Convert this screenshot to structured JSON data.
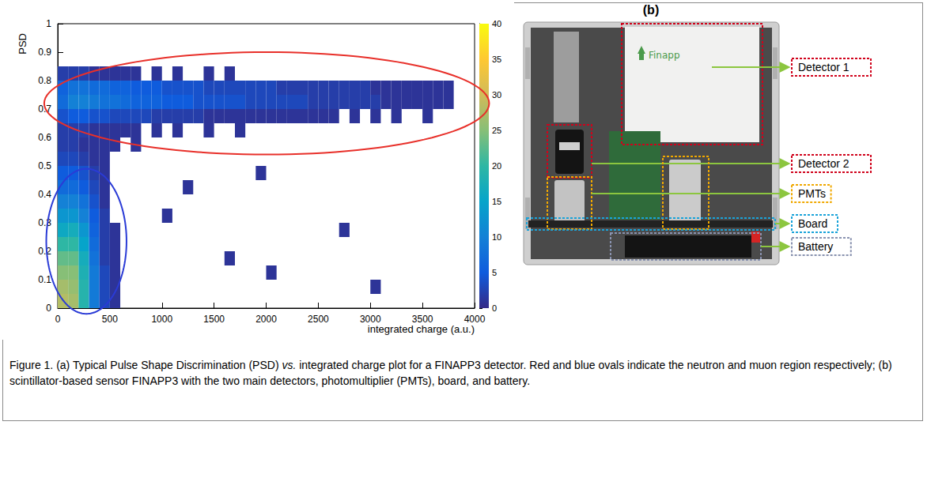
{
  "chart_data": {
    "type": "heatmap",
    "panel_label": "(a)",
    "x_label": "integrated charge (a.u.)",
    "y_label": "PSD",
    "x_bins": [
      0,
      100,
      200,
      300,
      400,
      500,
      600,
      700,
      800,
      900,
      1000,
      1100,
      1200,
      1300,
      1400,
      1500,
      1600,
      1700,
      1800,
      1900,
      2000,
      2100,
      2200,
      2300,
      2400,
      2500,
      2600,
      2700,
      2800,
      2900,
      3000,
      3100,
      3200,
      3300,
      3400,
      3500,
      3600,
      3700,
      3800,
      3900,
      4000
    ],
    "y_bins": [
      0,
      0.05,
      0.1,
      0.15,
      0.2,
      0.25,
      0.3,
      0.35,
      0.4,
      0.45,
      0.5,
      0.55,
      0.6,
      0.65,
      0.7,
      0.75,
      0.8,
      0.85,
      0.9,
      0.95,
      1
    ],
    "counts": [
      [
        28,
        27,
        19,
        9,
        3,
        1,
        0,
        0,
        0,
        0,
        0,
        0,
        0,
        0,
        0,
        0,
        0,
        0,
        0,
        0,
        0,
        0,
        0,
        0,
        0,
        0,
        0,
        0,
        0,
        0,
        0,
        0,
        0,
        0,
        0,
        0,
        0,
        0,
        0,
        0
      ],
      [
        27,
        26,
        19,
        9,
        3,
        1,
        0,
        0,
        0,
        0,
        0,
        0,
        0,
        0,
        0,
        0,
        0,
        0,
        0,
        0,
        0,
        0,
        0,
        0,
        0,
        0,
        0,
        0,
        0,
        0,
        1,
        0,
        0,
        0,
        0,
        0,
        0,
        0,
        0,
        0
      ],
      [
        25,
        25,
        18,
        9,
        3,
        1,
        0,
        0,
        0,
        0,
        0,
        0,
        0,
        0,
        0,
        0,
        0,
        0,
        0,
        0,
        1,
        0,
        0,
        0,
        0,
        0,
        0,
        0,
        0,
        0,
        0,
        0,
        0,
        0,
        0,
        0,
        0,
        0,
        0,
        0
      ],
      [
        23,
        23,
        17,
        8,
        2,
        1,
        0,
        0,
        0,
        0,
        0,
        0,
        0,
        0,
        0,
        0,
        1,
        0,
        0,
        0,
        0,
        0,
        0,
        0,
        0,
        0,
        0,
        0,
        0,
        0,
        0,
        0,
        0,
        0,
        0,
        0,
        0,
        0,
        0,
        0
      ],
      [
        20,
        20,
        15,
        7,
        2,
        1,
        0,
        0,
        0,
        0,
        0,
        0,
        0,
        0,
        0,
        0,
        0,
        0,
        0,
        0,
        0,
        0,
        0,
        0,
        0,
        0,
        0,
        0,
        0,
        0,
        0,
        0,
        0,
        0,
        0,
        0,
        0,
        0,
        0,
        0
      ],
      [
        16,
        17,
        13,
        6,
        2,
        1,
        0,
        0,
        0,
        0,
        0,
        0,
        0,
        0,
        0,
        0,
        0,
        0,
        0,
        0,
        0,
        0,
        0,
        0,
        0,
        0,
        0,
        1,
        0,
        0,
        0,
        0,
        0,
        0,
        0,
        0,
        0,
        0,
        0,
        0
      ],
      [
        13,
        13,
        10,
        5,
        2,
        0,
        0,
        0,
        0,
        0,
        1,
        0,
        0,
        0,
        0,
        0,
        0,
        0,
        0,
        0,
        0,
        0,
        0,
        0,
        0,
        0,
        0,
        0,
        0,
        0,
        0,
        0,
        0,
        0,
        0,
        0,
        0,
        0,
        0,
        0
      ],
      [
        10,
        10,
        8,
        4,
        1,
        0,
        0,
        0,
        0,
        0,
        0,
        0,
        0,
        0,
        0,
        0,
        0,
        0,
        0,
        0,
        0,
        0,
        0,
        0,
        0,
        0,
        0,
        0,
        0,
        0,
        0,
        0,
        0,
        0,
        0,
        0,
        0,
        0,
        0,
        0
      ],
      [
        7,
        7,
        5,
        3,
        1,
        0,
        0,
        0,
        0,
        0,
        0,
        0,
        1,
        0,
        0,
        0,
        0,
        0,
        0,
        0,
        0,
        0,
        0,
        0,
        0,
        0,
        0,
        0,
        0,
        0,
        0,
        0,
        0,
        0,
        0,
        0,
        0,
        0,
        0,
        0
      ],
      [
        5,
        5,
        4,
        2,
        1,
        0,
        0,
        0,
        0,
        0,
        0,
        0,
        0,
        0,
        0,
        0,
        0,
        0,
        0,
        1,
        0,
        0,
        0,
        0,
        0,
        0,
        0,
        0,
        0,
        0,
        0,
        0,
        0,
        0,
        0,
        0,
        0,
        0,
        0,
        0
      ],
      [
        3,
        3,
        2,
        1,
        1,
        0,
        0,
        0,
        0,
        0,
        0,
        0,
        0,
        0,
        0,
        0,
        0,
        0,
        0,
        0,
        0,
        0,
        0,
        0,
        0,
        0,
        0,
        0,
        0,
        0,
        0,
        0,
        0,
        0,
        0,
        0,
        0,
        0,
        0,
        0
      ],
      [
        2,
        2,
        1,
        1,
        1,
        1,
        0,
        1,
        0,
        0,
        0,
        0,
        0,
        0,
        0,
        0,
        0,
        0,
        0,
        0,
        0,
        0,
        0,
        0,
        0,
        0,
        0,
        0,
        0,
        0,
        0,
        0,
        0,
        0,
        0,
        0,
        0,
        0,
        0,
        0
      ],
      [
        2,
        2,
        2,
        1,
        1,
        1,
        1,
        1,
        0,
        1,
        0,
        1,
        0,
        0,
        1,
        0,
        0,
        1,
        0,
        0,
        0,
        0,
        0,
        0,
        0,
        0,
        0,
        0,
        0,
        0,
        0,
        0,
        0,
        0,
        0,
        0,
        0,
        0,
        0,
        0
      ],
      [
        4,
        5,
        5,
        4,
        4,
        3,
        3,
        3,
        3,
        2,
        2,
        2,
        2,
        2,
        1,
        1,
        1,
        1,
        1,
        1,
        1,
        1,
        1,
        1,
        1,
        1,
        1,
        0,
        1,
        0,
        1,
        0,
        1,
        0,
        0,
        1,
        0,
        0,
        0,
        0
      ],
      [
        7,
        10,
        10,
        9,
        8,
        8,
        7,
        6,
        6,
        6,
        5,
        5,
        5,
        4,
        4,
        4,
        4,
        4,
        3,
        3,
        3,
        3,
        3,
        3,
        2,
        2,
        2,
        2,
        2,
        2,
        2,
        1,
        1,
        1,
        1,
        1,
        1,
        1,
        0,
        0
      ],
      [
        6,
        8,
        8,
        7,
        7,
        6,
        6,
        5,
        5,
        5,
        4,
        4,
        4,
        4,
        3,
        3,
        3,
        3,
        3,
        3,
        3,
        2,
        2,
        2,
        2,
        2,
        2,
        2,
        2,
        2,
        1,
        1,
        1,
        1,
        1,
        1,
        1,
        1,
        0,
        0
      ],
      [
        2,
        2,
        2,
        1,
        1,
        1,
        1,
        1,
        0,
        1,
        0,
        1,
        0,
        0,
        1,
        0,
        1,
        0,
        0,
        0,
        0,
        0,
        0,
        0,
        0,
        0,
        0,
        0,
        0,
        0,
        0,
        0,
        0,
        0,
        0,
        0,
        0,
        0,
        0,
        0
      ],
      [
        0,
        0,
        0,
        0,
        0,
        0,
        0,
        0,
        0,
        0,
        0,
        0,
        0,
        0,
        0,
        0,
        0,
        0,
        0,
        0,
        0,
        0,
        0,
        0,
        0,
        0,
        0,
        0,
        0,
        0,
        0,
        0,
        0,
        0,
        0,
        0,
        0,
        0,
        0,
        0
      ],
      [
        0,
        0,
        0,
        0,
        0,
        0,
        0,
        0,
        0,
        0,
        0,
        0,
        0,
        0,
        0,
        0,
        0,
        0,
        0,
        0,
        0,
        0,
        0,
        0,
        0,
        0,
        0,
        0,
        0,
        0,
        0,
        0,
        0,
        0,
        0,
        0,
        0,
        0,
        0,
        0
      ],
      [
        0,
        0,
        0,
        0,
        0,
        0,
        0,
        0,
        0,
        0,
        0,
        0,
        0,
        0,
        0,
        0,
        0,
        0,
        0,
        0,
        0,
        0,
        0,
        0,
        0,
        0,
        0,
        0,
        0,
        0,
        0,
        0,
        0,
        0,
        0,
        0,
        0,
        0,
        0,
        0
      ]
    ],
    "xlim": [
      0,
      4000
    ],
    "xticks": [
      0,
      500,
      1000,
      1500,
      2000,
      2500,
      3000,
      3500,
      4000
    ],
    "ylim": [
      0,
      1
    ],
    "yticks": [
      0,
      0.1,
      0.2,
      0.3,
      0.4,
      0.5,
      0.6,
      0.7,
      0.8,
      0.9,
      1
    ],
    "colorbar": {
      "range": [
        0,
        40
      ],
      "ticks": [
        0,
        5,
        10,
        15,
        20,
        25,
        30,
        35,
        40
      ]
    },
    "regions": [
      {
        "color": "#e8302a",
        "x": [
          -130,
          4140
        ],
        "y": [
          0.54,
          0.9
        ]
      },
      {
        "color": "#2a3bd6",
        "x": [
          -110,
          660
        ],
        "y": [
          -0.02,
          0.49
        ]
      }
    ],
    "grid": false
  },
  "panel_b": {
    "label": "(b)",
    "logo": "Finapp",
    "parts": [
      {
        "label": "Detector 1",
        "color": "#d0021b"
      },
      {
        "label": "Detector 2",
        "color": "#d0021b"
      },
      {
        "label": "PMTs",
        "color": "#f0a800"
      },
      {
        "label": "Board",
        "color": "#1aa3d9"
      },
      {
        "label": "Battery",
        "color": "#8a93b0"
      }
    ]
  },
  "caption": {
    "before": "Figure 1. (a) Typical Pulse Shape Discrimination (PSD) ",
    "italic": "vs.",
    "after": " integrated charge plot for a FINAPP3 detector. Red and blue ovals indicate the neutron and muon region respectively; (b) scintillator-based sensor FINAPP3 with the two main detectors, photomultiplier (PMTs), board, and battery."
  }
}
